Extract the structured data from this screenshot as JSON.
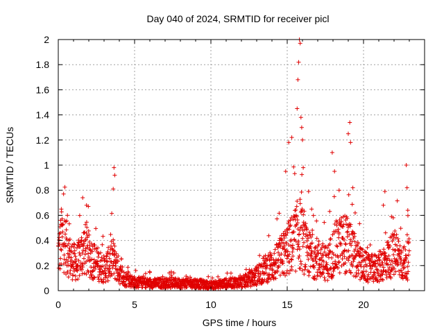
{
  "chart_data": {
    "type": "scatter",
    "title": "Day 040 of 2024, SRMTID for receiver picl",
    "xlabel": "GPS time / hours",
    "ylabel": "SRMTID / TECUs",
    "xlim": [
      0,
      24
    ],
    "ylim": [
      0,
      2
    ],
    "xticks": [
      0,
      5,
      10,
      15,
      20
    ],
    "yticks": [
      0,
      0.2,
      0.4,
      0.6,
      0.8,
      1,
      1.2,
      1.4,
      1.6,
      1.8,
      2
    ],
    "x_tick_labels": [
      "0",
      "5",
      "10",
      "15",
      "20"
    ],
    "y_tick_labels": [
      "0",
      "0.2",
      "0.4",
      "0.6",
      "0.8",
      "1",
      "1.2",
      "1.4",
      "1.6",
      "1.8",
      "2"
    ],
    "grid": true,
    "marker": "+",
    "marker_color": "#e00000",
    "series": [
      {
        "name": "SRMTID",
        "envelope_x": [
          0,
          0.3,
          0.8,
          1.2,
          1.7,
          2.2,
          3.0,
          3.6,
          4.2,
          5,
          6,
          7,
          8,
          9,
          10,
          11,
          12,
          12.8,
          13.5,
          14.2,
          14.8,
          15.4,
          15.8,
          16.3,
          17,
          17.6,
          18.2,
          18.8,
          19.3,
          19.8,
          20.4,
          21,
          21.6,
          22.1,
          22.7,
          23.0
        ],
        "envelope_y": [
          0.35,
          0.5,
          0.3,
          0.25,
          0.4,
          0.3,
          0.2,
          0.3,
          0.12,
          0.08,
          0.07,
          0.07,
          0.07,
          0.07,
          0.05,
          0.07,
          0.08,
          0.12,
          0.2,
          0.25,
          0.35,
          0.45,
          0.55,
          0.35,
          0.3,
          0.25,
          0.4,
          0.45,
          0.35,
          0.25,
          0.2,
          0.22,
          0.3,
          0.35,
          0.25,
          0.3
        ],
        "spikes": [
          {
            "x": 0.2,
            "y": 0.65
          },
          {
            "x": 0.6,
            "y": 0.6
          },
          {
            "x": 1.6,
            "y": 0.74
          },
          {
            "x": 1.85,
            "y": 0.68
          },
          {
            "x": 3.65,
            "y": 0.98
          },
          {
            "x": 3.7,
            "y": 0.92
          },
          {
            "x": 3.6,
            "y": 0.81
          },
          {
            "x": 14.9,
            "y": 0.95
          },
          {
            "x": 15.1,
            "y": 1.18
          },
          {
            "x": 15.3,
            "y": 1.22
          },
          {
            "x": 15.65,
            "y": 1.45
          },
          {
            "x": 15.7,
            "y": 1.68
          },
          {
            "x": 15.75,
            "y": 1.82
          },
          {
            "x": 15.8,
            "y": 2.0
          },
          {
            "x": 15.85,
            "y": 1.97
          },
          {
            "x": 15.9,
            "y": 1.38
          },
          {
            "x": 15.95,
            "y": 1.3
          },
          {
            "x": 16.0,
            "y": 1.2
          },
          {
            "x": 16.05,
            "y": 0.98
          },
          {
            "x": 16.4,
            "y": 0.79
          },
          {
            "x": 16.6,
            "y": 0.65
          },
          {
            "x": 17.95,
            "y": 1.1
          },
          {
            "x": 18.1,
            "y": 0.95
          },
          {
            "x": 18.4,
            "y": 0.8
          },
          {
            "x": 19.0,
            "y": 1.25
          },
          {
            "x": 19.1,
            "y": 1.34
          },
          {
            "x": 19.15,
            "y": 1.18
          },
          {
            "x": 19.3,
            "y": 0.82
          },
          {
            "x": 21.4,
            "y": 0.79
          },
          {
            "x": 21.3,
            "y": 0.68
          },
          {
            "x": 22.8,
            "y": 1.0
          },
          {
            "x": 22.85,
            "y": 0.82
          },
          {
            "x": 22.9,
            "y": 0.64
          }
        ]
      }
    ]
  }
}
